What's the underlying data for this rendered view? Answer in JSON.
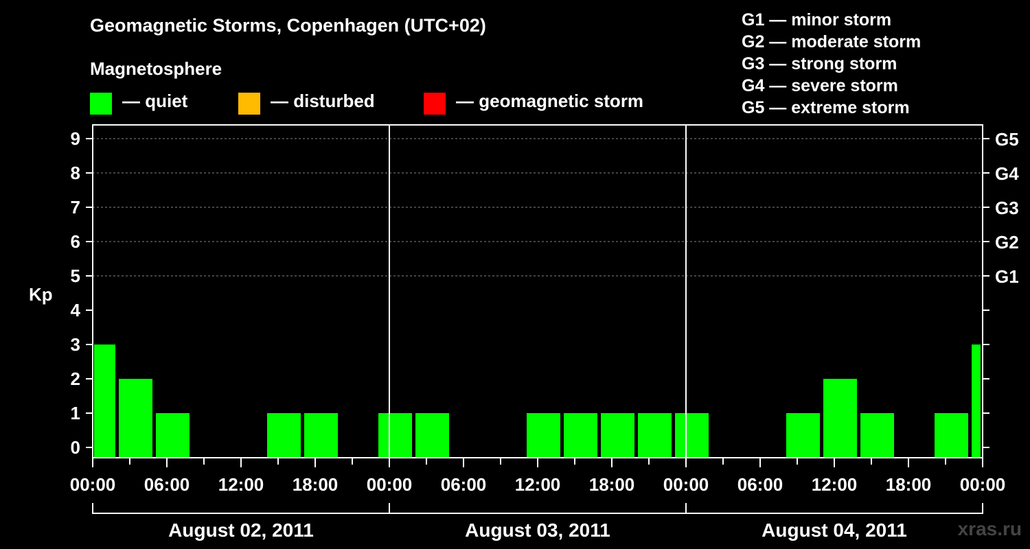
{
  "title": "Geomagnetic Storms, Copenhagen (UTC+02)",
  "legend": {
    "heading": "Magnetosphere",
    "items": [
      {
        "label": "— quiet",
        "color": "#00ff00"
      },
      {
        "label": "— disturbed",
        "color": "#ffbb00"
      },
      {
        "label": "— geomagnetic storm",
        "color": "#ff0000"
      }
    ]
  },
  "storm_scale": [
    "G1 — minor storm",
    "G2 — moderate storm",
    "G3 — strong storm",
    "G4 — severe storm",
    "G5 — extreme storm"
  ],
  "watermark": "xras.ru",
  "chart_data": {
    "type": "bar",
    "ylabel": "Kp",
    "ylim": [
      0,
      9
    ],
    "yticks": [
      "0",
      "1",
      "2",
      "3",
      "4",
      "5",
      "6",
      "7",
      "8",
      "9"
    ],
    "right_ticks": [
      {
        "value": 5,
        "label": "G1"
      },
      {
        "value": 6,
        "label": "G2"
      },
      {
        "value": 7,
        "label": "G3"
      },
      {
        "value": 8,
        "label": "G4"
      },
      {
        "value": 9,
        "label": "G5"
      }
    ],
    "x_range_hours": [
      0,
      72
    ],
    "xtick_labels": [
      "00:00",
      "06:00",
      "12:00",
      "18:00",
      "00:00",
      "06:00",
      "12:00",
      "18:00",
      "00:00",
      "06:00",
      "12:00",
      "18:00",
      "00:00"
    ],
    "day_labels": [
      "August 02, 2011",
      "August 03, 2011",
      "August 04, 2011"
    ],
    "bar_color": "#00ff00",
    "bars": [
      {
        "start": 0,
        "end": 2,
        "kp": 3
      },
      {
        "start": 2,
        "end": 5,
        "kp": 2
      },
      {
        "start": 5,
        "end": 8,
        "kp": 1
      },
      {
        "start": 8,
        "end": 11,
        "kp": 0
      },
      {
        "start": 11,
        "end": 14,
        "kp": 0
      },
      {
        "start": 14,
        "end": 17,
        "kp": 1
      },
      {
        "start": 17,
        "end": 20,
        "kp": 1
      },
      {
        "start": 20,
        "end": 23,
        "kp": 0
      },
      {
        "start": 23,
        "end": 26,
        "kp": 1
      },
      {
        "start": 26,
        "end": 29,
        "kp": 1
      },
      {
        "start": 29,
        "end": 32,
        "kp": 0
      },
      {
        "start": 32,
        "end": 35,
        "kp": 0
      },
      {
        "start": 35,
        "end": 38,
        "kp": 1
      },
      {
        "start": 38,
        "end": 41,
        "kp": 1
      },
      {
        "start": 41,
        "end": 44,
        "kp": 1
      },
      {
        "start": 44,
        "end": 47,
        "kp": 1
      },
      {
        "start": 47,
        "end": 50,
        "kp": 1
      },
      {
        "start": 50,
        "end": 53,
        "kp": 0
      },
      {
        "start": 53,
        "end": 56,
        "kp": 0
      },
      {
        "start": 56,
        "end": 59,
        "kp": 1
      },
      {
        "start": 59,
        "end": 62,
        "kp": 2
      },
      {
        "start": 62,
        "end": 65,
        "kp": 1
      },
      {
        "start": 65,
        "end": 68,
        "kp": 0
      },
      {
        "start": 68,
        "end": 71,
        "kp": 1
      },
      {
        "start": 71,
        "end": 72,
        "kp": 3
      }
    ]
  }
}
